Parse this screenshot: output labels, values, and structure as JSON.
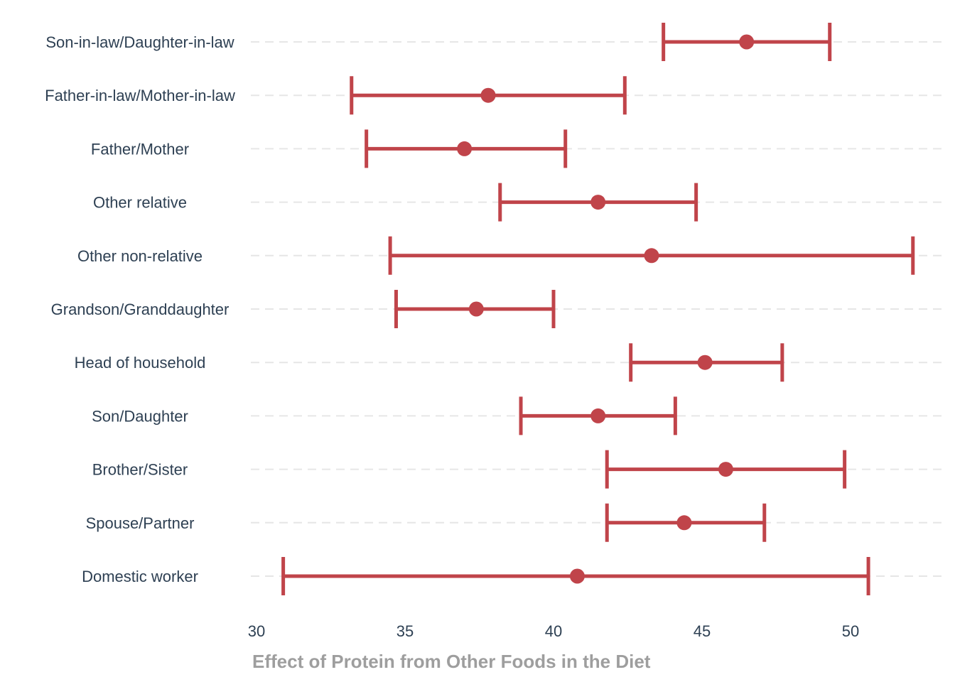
{
  "chart_data": {
    "type": "errorbar",
    "xlabel": "Effect of Protein from Other Foods in the Diet",
    "ylabel": "",
    "xlim": [
      30,
      52.5
    ],
    "xticks": [
      30,
      35,
      40,
      45,
      50
    ],
    "grid": "horizontal dashed",
    "legend": "none",
    "color": "#c0444a",
    "categories": [
      "Son-in-law/Daughter-in-law",
      "Father-in-law/Mother-in-law",
      "Father/Mother",
      "Other relative",
      "Other non-relative",
      "Grandson/Granddaughter",
      "Head of household",
      "Son/Daughter",
      "Brother/Sister",
      "Spouse/Partner",
      "Domestic worker"
    ],
    "points": [
      {
        "estimate": 46.5,
        "lower": 43.7,
        "upper": 49.3
      },
      {
        "estimate": 37.8,
        "lower": 33.2,
        "upper": 42.4
      },
      {
        "estimate": 37.0,
        "lower": 33.7,
        "upper": 40.4
      },
      {
        "estimate": 41.5,
        "lower": 38.2,
        "upper": 44.8
      },
      {
        "estimate": 43.3,
        "lower": 34.5,
        "upper": 52.1
      },
      {
        "estimate": 37.4,
        "lower": 34.7,
        "upper": 40.0
      },
      {
        "estimate": 45.1,
        "lower": 42.6,
        "upper": 47.7
      },
      {
        "estimate": 41.5,
        "lower": 38.9,
        "upper": 44.1
      },
      {
        "estimate": 45.8,
        "lower": 41.8,
        "upper": 49.8
      },
      {
        "estimate": 44.4,
        "lower": 41.8,
        "upper": 47.1
      },
      {
        "estimate": 40.8,
        "lower": 30.9,
        "upper": 50.6
      }
    ]
  }
}
